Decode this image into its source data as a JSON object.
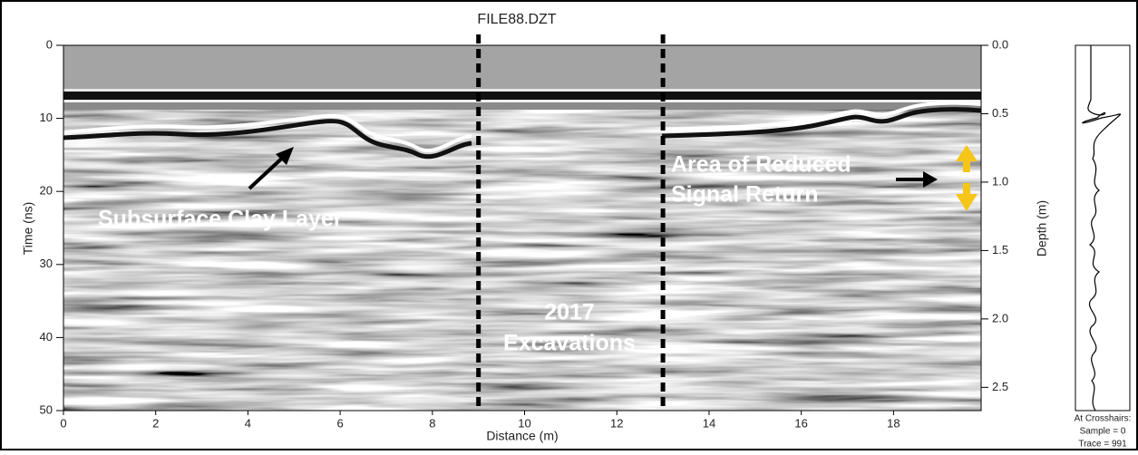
{
  "chart_data": {
    "type": "radargram",
    "title": "FILE88.DZT",
    "x_label": "Distance (m)",
    "y_label": "Time (ns)",
    "y2_label": "Depth (m)",
    "xlim": [
      0,
      19.9
    ],
    "xticks": [
      0,
      2,
      4,
      6,
      8,
      10,
      12,
      14,
      16,
      18
    ],
    "ylim": [
      0,
      50
    ],
    "y_inverted": true,
    "yticks": [
      0,
      10,
      20,
      30,
      40,
      50
    ],
    "y2lim": [
      0,
      2.67
    ],
    "y2ticks": [
      {
        "value": 0,
        "label": "0.0"
      },
      0.5,
      {
        "value": 1,
        "label": "1.0"
      },
      1.5,
      {
        "value": 2,
        "label": "2.0"
      },
      2.5
    ],
    "markers": [
      9,
      13
    ],
    "annotations": [
      "Subsurface Clay Layer",
      "Area of Reduced",
      "Signal Return",
      "2017",
      "Excavations"
    ],
    "trace_info": [
      "At Crosshairs:",
      "Sample = 0",
      "Trace = 991"
    ]
  }
}
